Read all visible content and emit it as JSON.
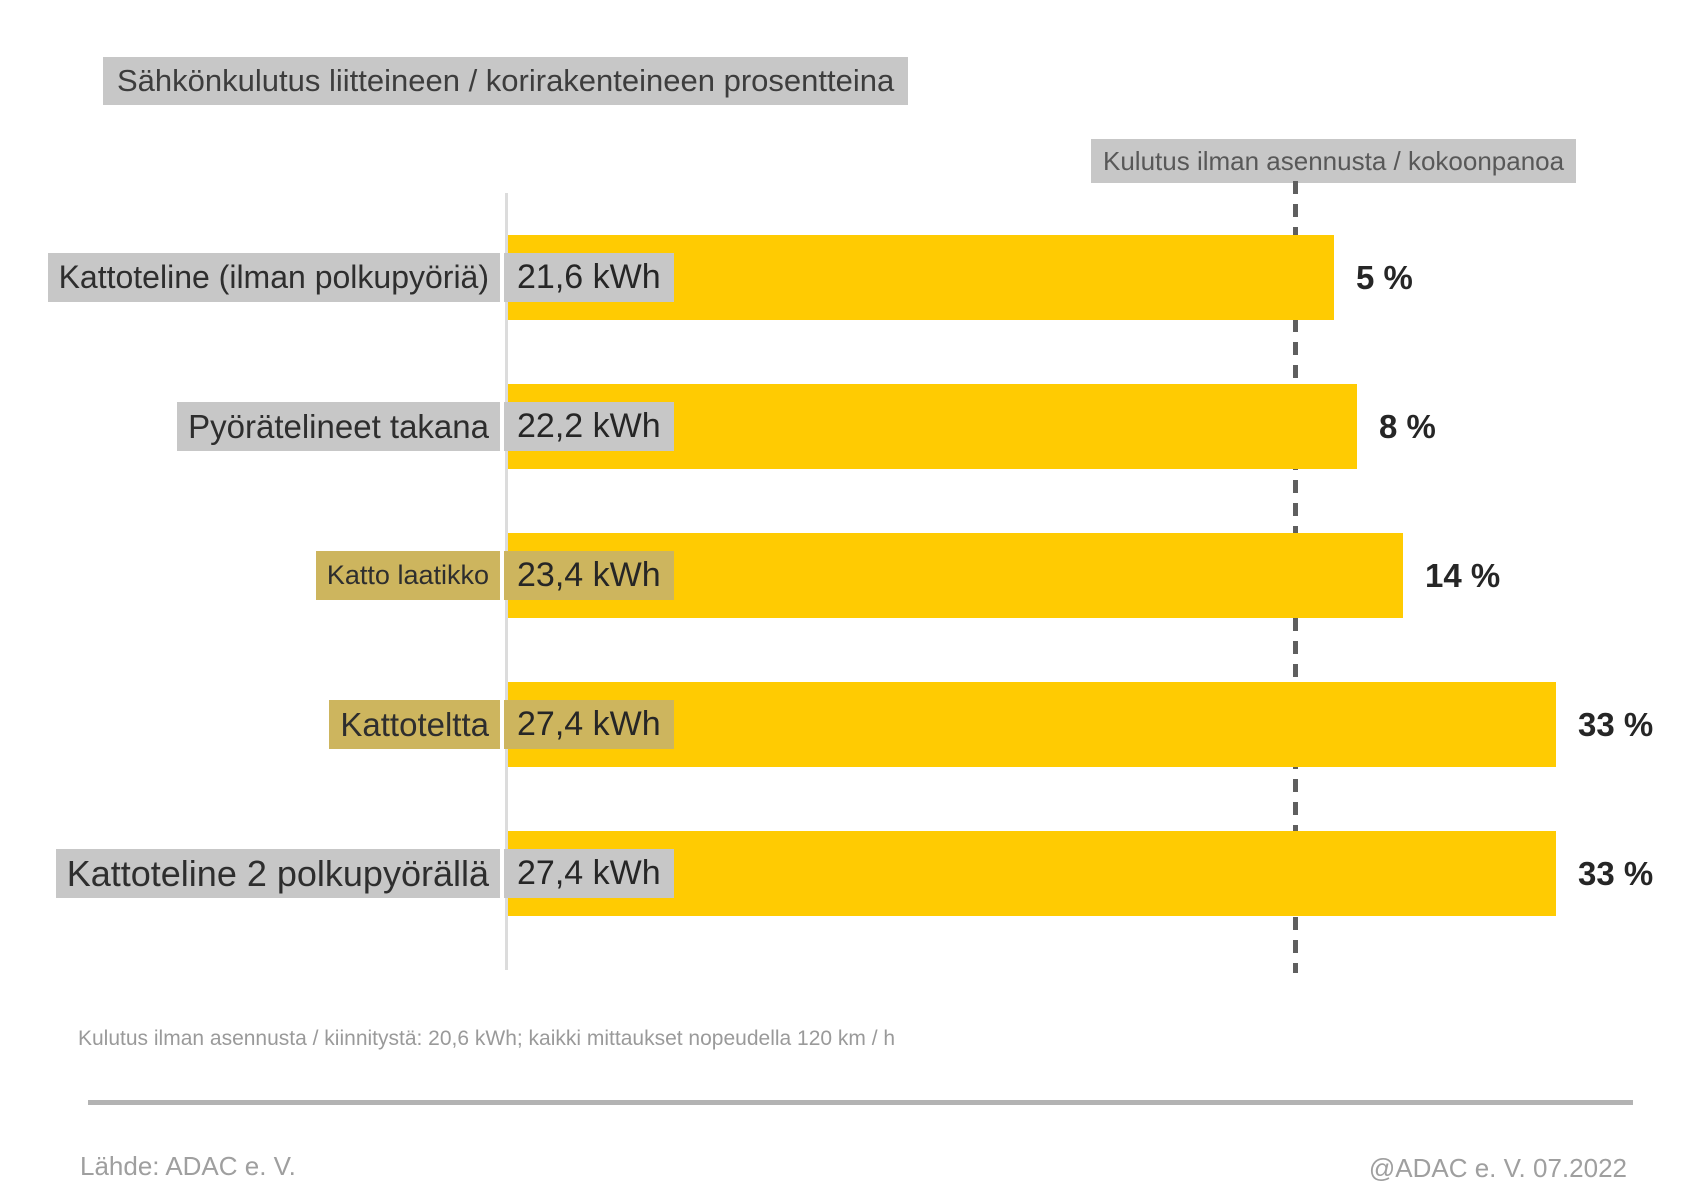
{
  "title": "Sähkönkulutus liitteineen / korirakenteineen prosentteina",
  "reference_line_label": "Kulutus ilman asennusta / kokoonpanoa",
  "footnote": "Kulutus ilman asennusta / kiinnitystä: 20,6 kWh; kaikki mittaukset nopeudella 120 km / h",
  "source": "Lähde: ADAC e. V.",
  "credit": "@ADAC e. V. 07.2022",
  "colors": {
    "bar": "#ffcb02",
    "label_background_gray": "#c7c7c7",
    "label_background_khaki": "#cdb55e",
    "dashed_reference_line": "#5f5f5f",
    "axis_line": "#dcdcdc",
    "muted_text": "#9a9a9a"
  },
  "chart_data": {
    "type": "bar",
    "orientation": "horizontal",
    "title": "Sähkönkulutus liitteineen / korirakenteineen prosentteina",
    "xlabel": "",
    "ylabel": "",
    "xlim_kwh": [
      0,
      27.4
    ],
    "grid": false,
    "legend_position": "none",
    "reference_line": {
      "value_kwh": 20.6,
      "label": "Kulutus ilman asennusta / kokoonpanoa",
      "style": "dashed-vertical"
    },
    "categories": [
      "Kattoteline (ilman polkupyöriä)",
      "Pyörätelineet takana",
      "Katto laatikko",
      "Kattoteltta",
      "Kattoteline 2 polkupyörällä"
    ],
    "values_kwh": [
      21.6,
      22.2,
      23.4,
      27.4,
      27.4
    ],
    "percent_values": [
      5,
      8,
      14,
      33,
      33
    ],
    "rows": [
      {
        "category": "Kattoteline (ilman polkupyöriä)",
        "value_kwh": 21.6,
        "value_label": "21,6 kWh",
        "percent_label": "5 %",
        "highlight": false
      },
      {
        "category": "Pyörätelineet takana",
        "value_kwh": 22.2,
        "value_label": "22,2 kWh",
        "percent_label": "8 %",
        "highlight": false
      },
      {
        "category": "Katto laatikko",
        "value_kwh": 23.4,
        "value_label": "23,4 kWh",
        "percent_label": "14 %",
        "highlight": true
      },
      {
        "category": "Kattoteltta",
        "value_kwh": 27.4,
        "value_label": "27,4 kWh",
        "percent_label": "33 %",
        "highlight": true
      },
      {
        "category": "Kattoteline 2 polkupyörällä",
        "value_kwh": 27.4,
        "value_label": "27,4 kWh",
        "percent_label": "33 %",
        "highlight": false
      }
    ]
  }
}
